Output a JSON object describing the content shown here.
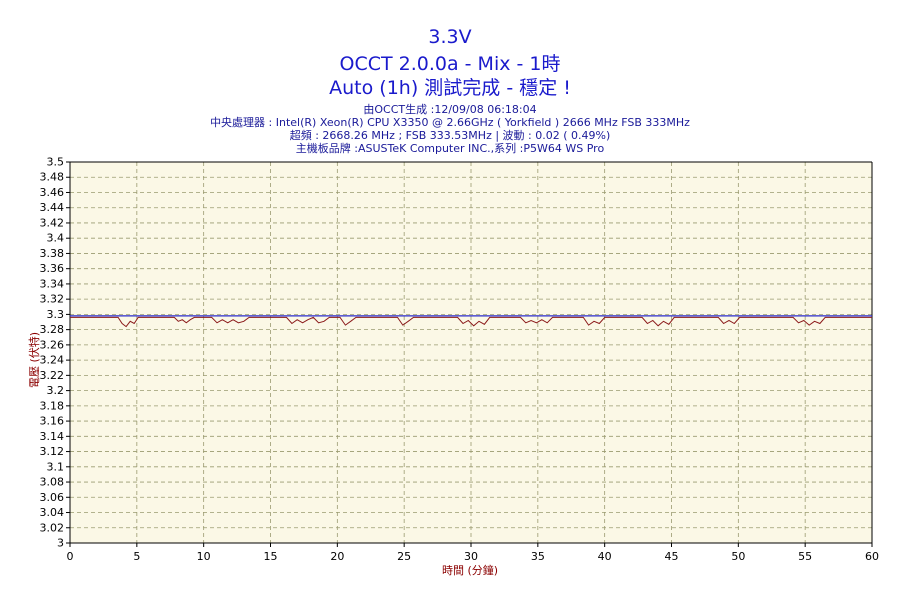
{
  "header": {
    "title": "3.3V",
    "subtitle1": "OCCT 2.0.0a - Mix - 1時",
    "subtitle2": "Auto (1h) 測試完成 - 穩定 !",
    "info1": "由OCCT生成 :12/09/08 06:18:04",
    "info2": "中央處理器 : Intel(R) Xeon(R) CPU X3350 @ 2.66GHz ( Yorkfield ) 2666 MHz FSB 333MHz",
    "info3": "超頻 : 2668.26 MHz ; FSB 333.53MHz | 波動 : 0.02 ( 0.49%)",
    "info4": "主機板品牌 :ASUSTeK Computer INC.,系列 :P5W64 WS Pro"
  },
  "colors": {
    "plot_bg": "#fbf8e6",
    "grid": "#9a9a70",
    "max_line": "#2a2acc",
    "voltage_line": "#8b1a1a",
    "axis_title": "#8b0000"
  },
  "chart_data": {
    "type": "line",
    "xlabel": "時間 (分鐘)",
    "ylabel": "電壓 (伏特)",
    "xlim": [
      0,
      60
    ],
    "ylim": [
      3.0,
      3.5
    ],
    "x_ticks": [
      0,
      5,
      10,
      15,
      20,
      25,
      30,
      35,
      40,
      45,
      50,
      55,
      60
    ],
    "y_ticks": [
      3,
      3.02,
      3.04,
      3.06,
      3.08,
      3.1,
      3.12,
      3.14,
      3.16,
      3.18,
      3.2,
      3.22,
      3.24,
      3.26,
      3.28,
      3.3,
      3.32,
      3.34,
      3.36,
      3.38,
      3.4,
      3.42,
      3.44,
      3.46,
      3.48,
      3.5
    ],
    "grid": true,
    "series": [
      {
        "values_x": [
          0,
          3.6,
          3.9,
          4.2,
          4.5,
          4.8,
          5.1,
          7.8,
          8.1,
          8.4,
          8.7,
          9.0,
          9.3,
          10.6,
          11.0,
          11.4,
          11.8,
          12.2,
          12.6,
          13.0,
          13.4,
          16.2,
          16.6,
          17.0,
          17.4,
          17.8,
          18.2,
          18.6,
          19.0,
          19.4,
          20.2,
          20.6,
          21.0,
          21.4,
          24.5,
          24.9,
          25.3,
          25.7,
          29.0,
          29.4,
          29.8,
          30.2,
          30.6,
          31.0,
          31.4,
          33.7,
          34.1,
          34.5,
          34.9,
          35.3,
          35.7,
          36.1,
          38.4,
          38.8,
          39.2,
          39.6,
          40.0,
          42.8,
          43.2,
          43.6,
          44.0,
          44.4,
          44.8,
          45.2,
          48.5,
          48.9,
          49.3,
          49.7,
          50.1,
          54.1,
          54.5,
          54.9,
          55.3,
          55.7,
          56.1,
          56.5,
          60
        ],
        "values_y": [
          3.296,
          3.296,
          3.288,
          3.284,
          3.291,
          3.288,
          3.296,
          3.296,
          3.291,
          3.293,
          3.289,
          3.293,
          3.296,
          3.296,
          3.289,
          3.293,
          3.289,
          3.293,
          3.289,
          3.291,
          3.296,
          3.296,
          3.288,
          3.293,
          3.289,
          3.293,
          3.296,
          3.289,
          3.291,
          3.296,
          3.296,
          3.286,
          3.291,
          3.296,
          3.296,
          3.286,
          3.291,
          3.296,
          3.296,
          3.288,
          3.292,
          3.285,
          3.291,
          3.287,
          3.296,
          3.296,
          3.289,
          3.292,
          3.289,
          3.293,
          3.289,
          3.296,
          3.296,
          3.286,
          3.291,
          3.288,
          3.296,
          3.296,
          3.288,
          3.292,
          3.285,
          3.291,
          3.287,
          3.296,
          3.296,
          3.288,
          3.292,
          3.288,
          3.296,
          3.296,
          3.289,
          3.292,
          3.286,
          3.291,
          3.288,
          3.296,
          3.296
        ]
      },
      {
        "values_x": [
          0,
          60
        ],
        "values_y": [
          3.298,
          3.298
        ]
      }
    ]
  }
}
